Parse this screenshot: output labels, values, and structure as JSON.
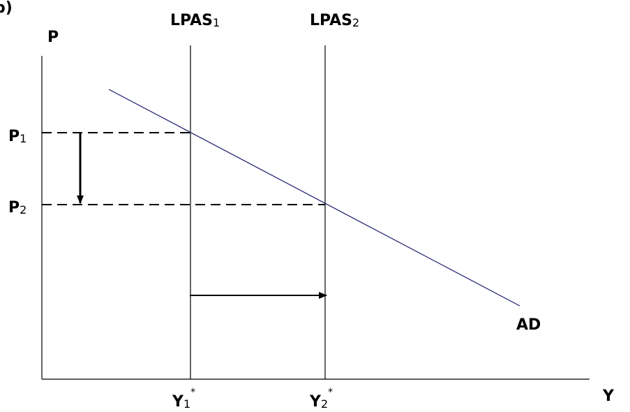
{
  "panel_label": "b)",
  "axes": {
    "y_label": "P",
    "x_label": "Y"
  },
  "curves": {
    "lpas1": {
      "main": "LPAS",
      "sub": "1"
    },
    "lpas2": {
      "main": "LPAS",
      "sub": "2"
    },
    "ad": "AD"
  },
  "levels": {
    "p1": {
      "main": "P",
      "sub": "1"
    },
    "p2": {
      "main": "P",
      "sub": "2"
    },
    "y1": {
      "main": "Y",
      "sub": "1",
      "sup": "*"
    },
    "y2": {
      "main": "Y",
      "sub": "2",
      "sup": "*"
    }
  }
}
